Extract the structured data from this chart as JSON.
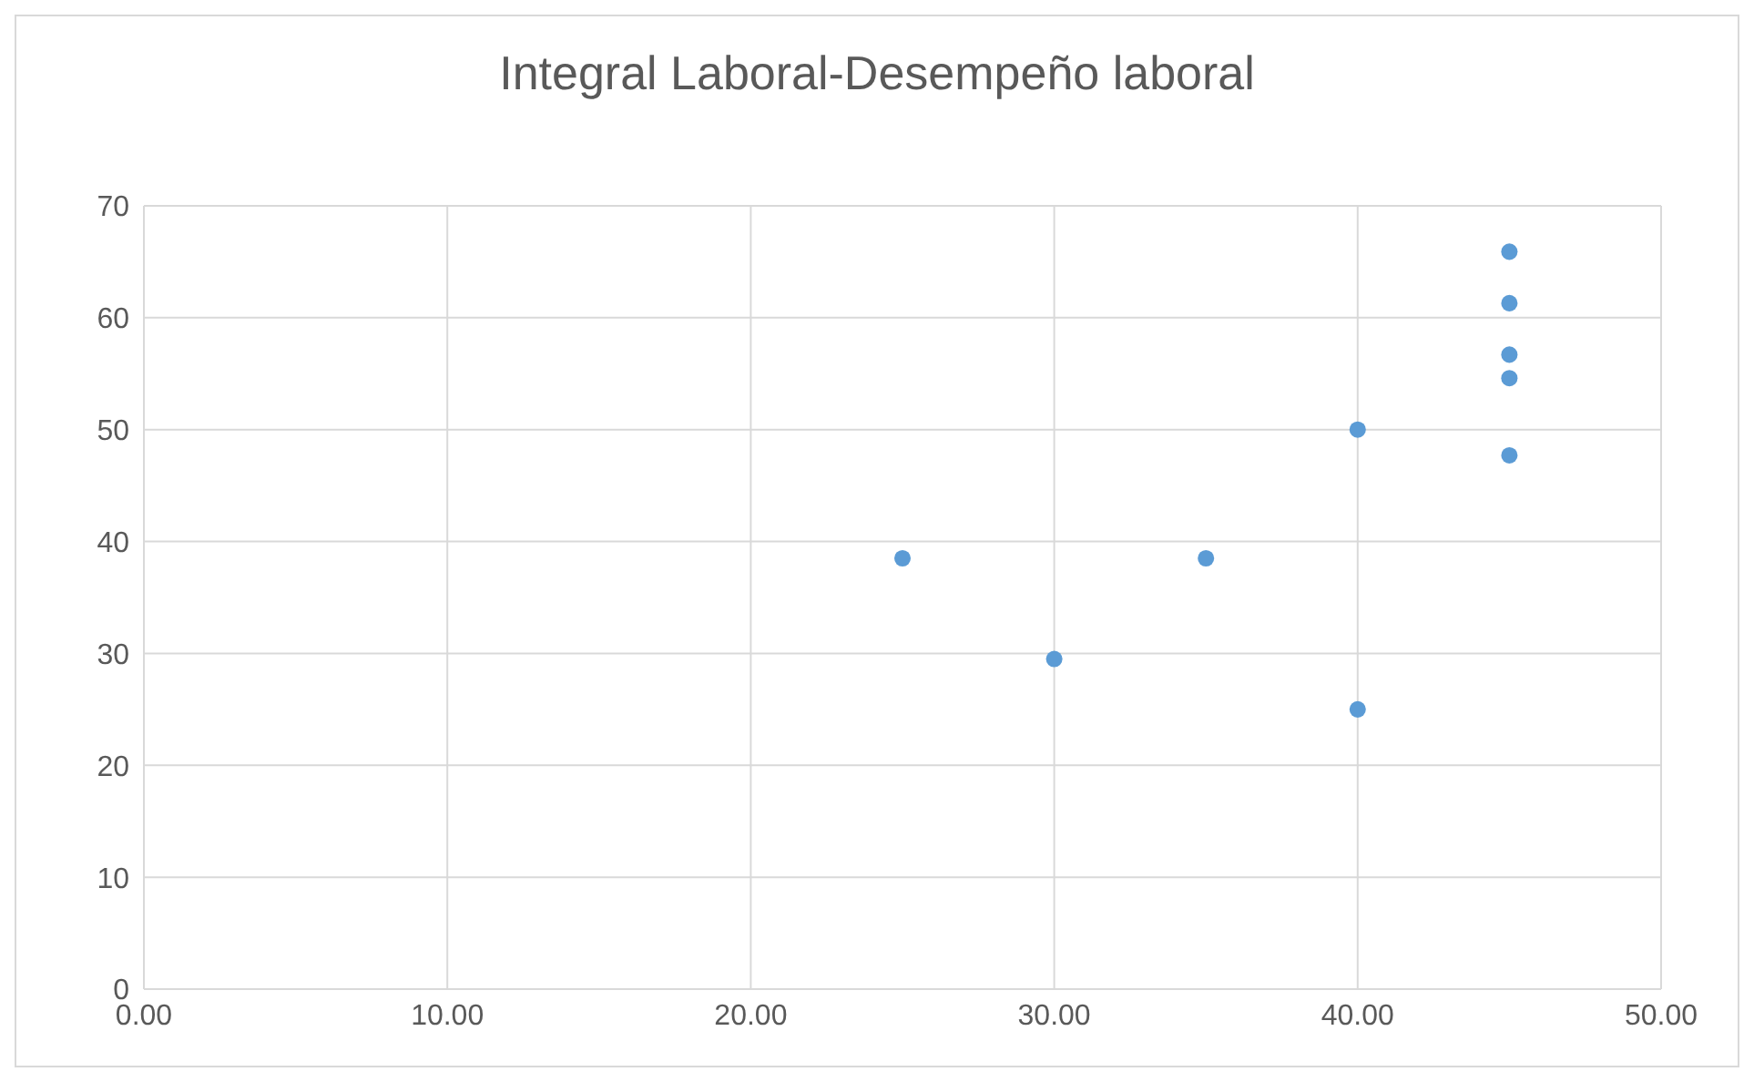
{
  "chart_data": {
    "type": "scatter",
    "title": "Integral Laboral-Desempeño laboral",
    "x": [
      25,
      30,
      35,
      40,
      40,
      45,
      45,
      45,
      45,
      45
    ],
    "series": [
      {
        "color": "#5b9bd5",
        "values": [
          38.5,
          29.5,
          38.5,
          50,
          25,
          65.9,
          61.3,
          56.7,
          54.6,
          47.7
        ]
      }
    ],
    "xlim": [
      0,
      50
    ],
    "xticks": [
      {
        "value": 0,
        "label": "0.00"
      },
      {
        "value": 10,
        "label": "10.00"
      },
      {
        "value": 20,
        "label": "20.00"
      },
      {
        "value": 30,
        "label": "30.00"
      },
      {
        "value": 40,
        "label": "40.00"
      },
      {
        "value": 50,
        "label": "50.00"
      }
    ],
    "ylim": [
      0,
      70
    ],
    "yticks": [
      0,
      10,
      20,
      30,
      40,
      50,
      60,
      70
    ],
    "grid": true,
    "marker": "circle",
    "legend": false
  }
}
